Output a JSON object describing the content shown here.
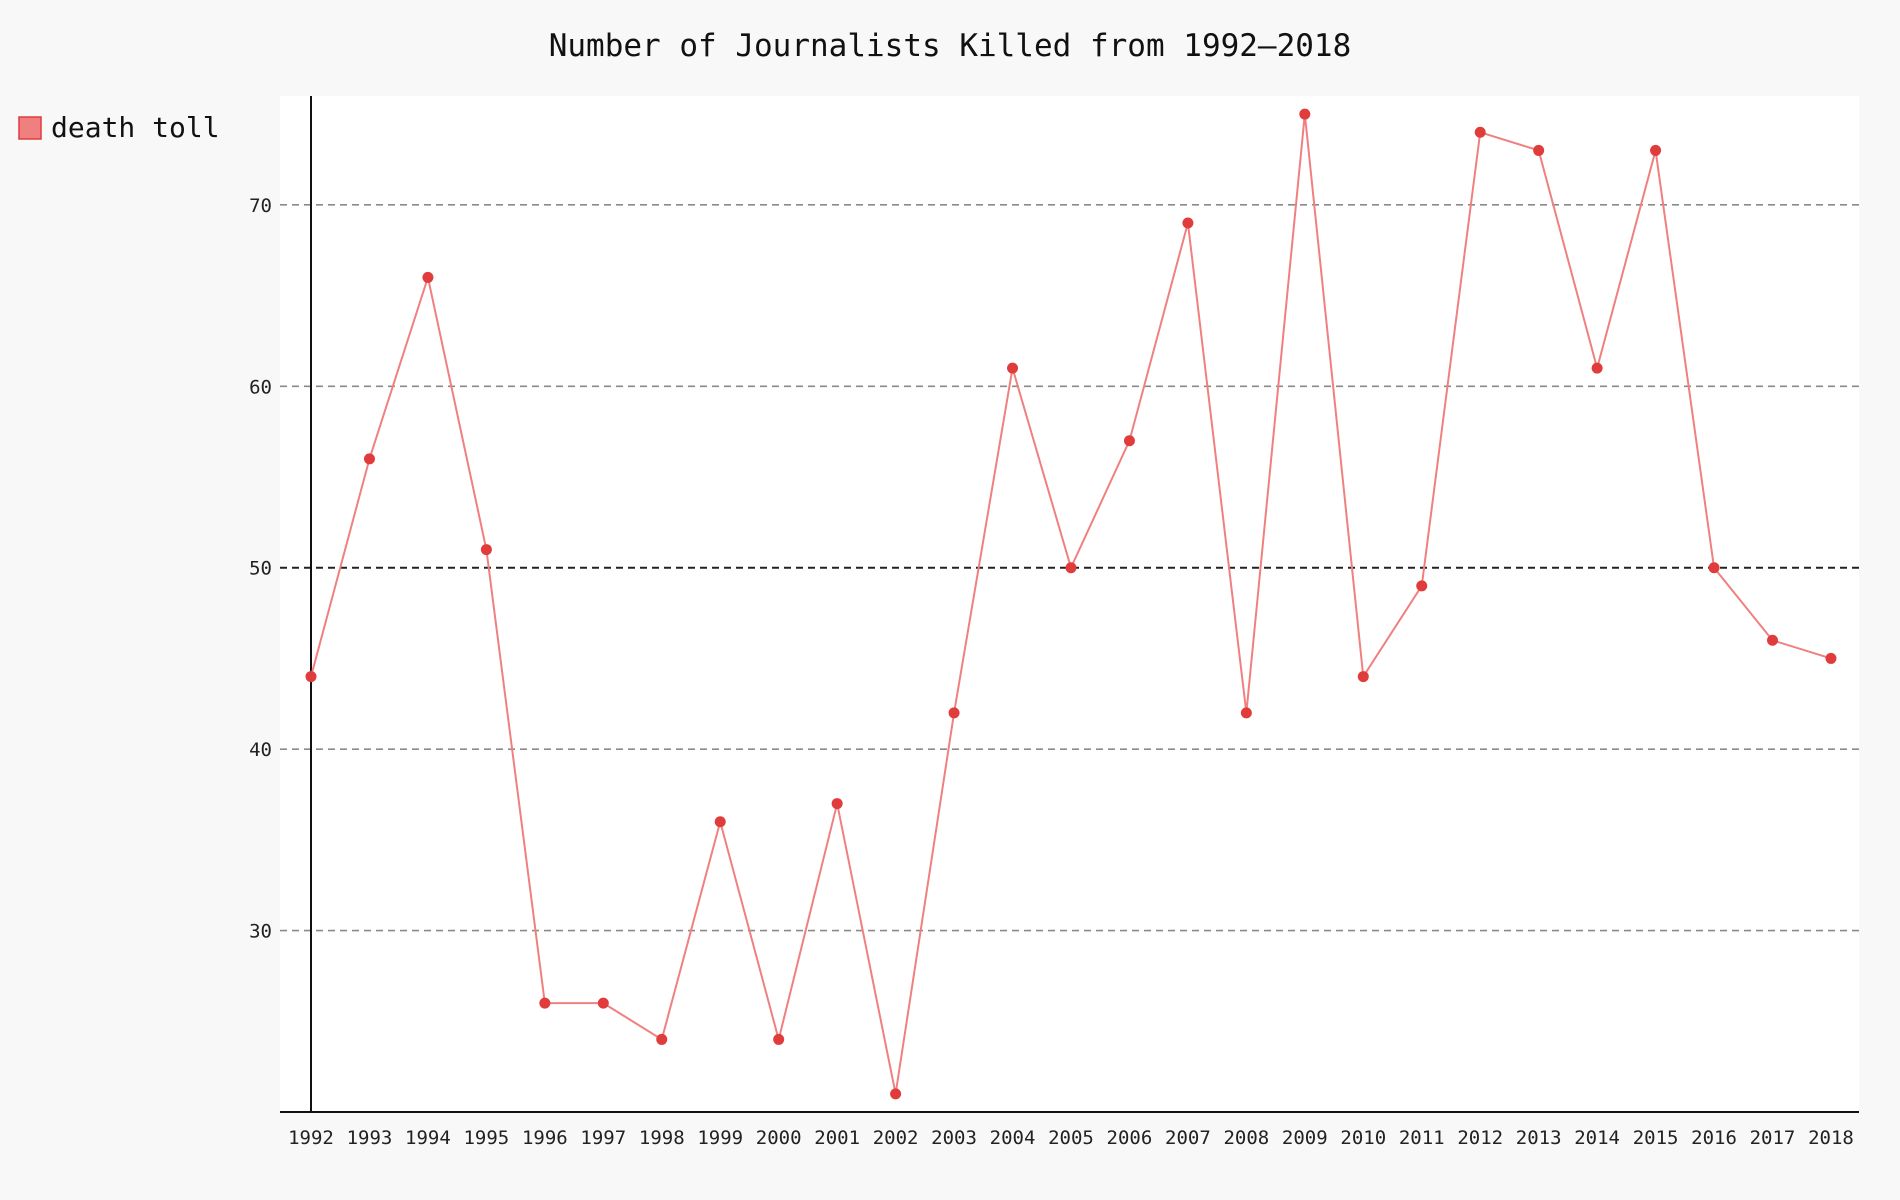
{
  "chart_data": {
    "type": "line",
    "title": "Number of Journalists Killed from 1992–2018",
    "xlabel": "",
    "ylabel": "",
    "categories": [
      "1992",
      "1993",
      "1994",
      "1995",
      "1996",
      "1997",
      "1998",
      "1999",
      "2000",
      "2001",
      "2002",
      "2003",
      "2004",
      "2005",
      "2006",
      "2007",
      "2008",
      "2009",
      "2010",
      "2011",
      "2012",
      "2013",
      "2014",
      "2015",
      "2016",
      "2017",
      "2018"
    ],
    "series": [
      {
        "name": "death toll",
        "values": [
          44,
          56,
          66,
          51,
          26,
          26,
          24,
          36,
          24,
          37,
          21,
          42,
          61,
          50,
          57,
          69,
          42,
          75,
          44,
          49,
          74,
          73,
          61,
          73,
          50,
          46,
          45
        ]
      }
    ],
    "ylim": [
      20,
      76
    ],
    "yticks": [
      30,
      40,
      50,
      60,
      70
    ],
    "highlight_gridline": 50,
    "grid": true,
    "legend_position": "top-left",
    "colors": {
      "figure_background": "#f8f8f8",
      "plot_background": "#ffffff",
      "series": "#f08080",
      "marker": "#e03c3c",
      "grid": "#8a8a8a",
      "highlight_grid": "#222222",
      "axis": "#111111"
    }
  }
}
